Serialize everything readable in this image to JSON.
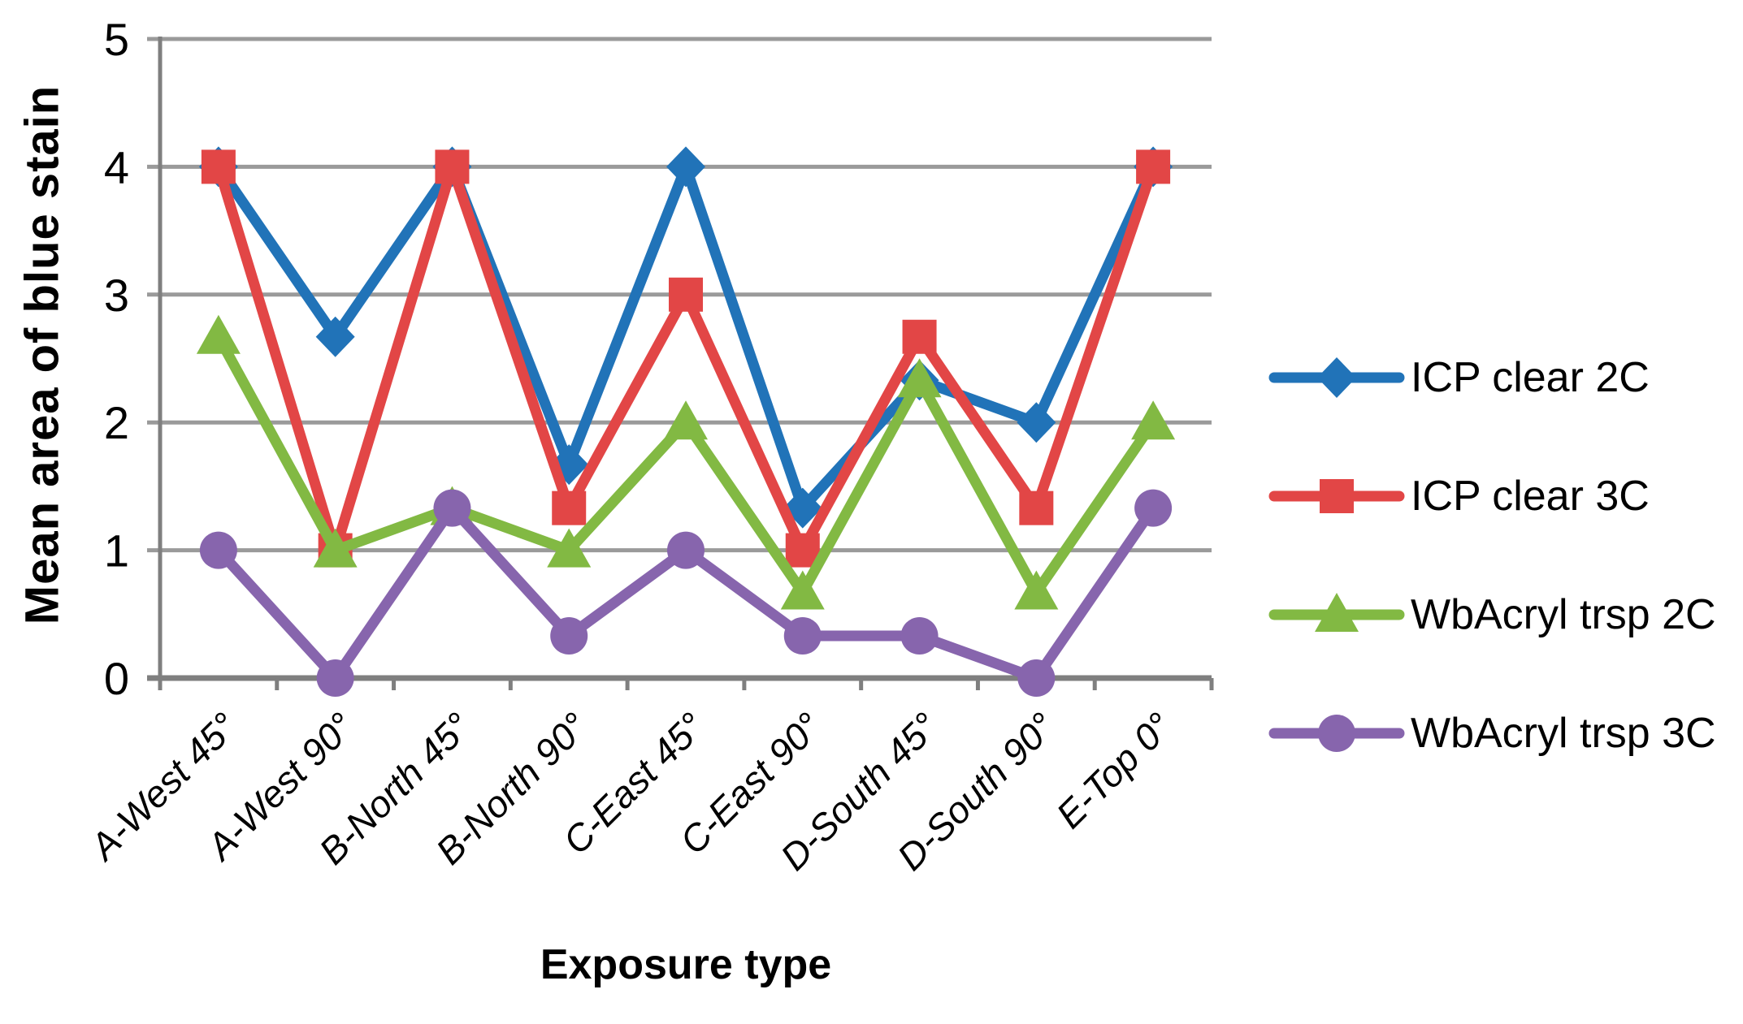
{
  "chart_data": {
    "type": "line",
    "title": "",
    "xlabel": "Exposure type",
    "ylabel": "Mean area of blue stain",
    "categories": [
      "A-West 45°",
      "A-West 90°",
      "B-North 45°",
      "B-North 90°",
      "C-East 45°",
      "C-East 90°",
      "D-South 45°",
      "D-South 90°",
      "E-Top 0°"
    ],
    "yticks": [
      0,
      1,
      2,
      3,
      4,
      5
    ],
    "ylim": [
      0,
      5
    ],
    "grid": true,
    "legend_position": "right",
    "series": [
      {
        "name": "ICP clear 2C",
        "color": "#2173B8",
        "marker": "diamond",
        "values": [
          4,
          2.67,
          4,
          1.67,
          4,
          1.33,
          2.33,
          2,
          4
        ]
      },
      {
        "name": "ICP clear 3C",
        "color": "#E24646",
        "marker": "square",
        "values": [
          4,
          1,
          4,
          1.33,
          3,
          1,
          2.67,
          1.33,
          4
        ]
      },
      {
        "name": "WbAcryl trsp 2C",
        "color": "#82B943",
        "marker": "triangle",
        "values": [
          2.67,
          1,
          1.33,
          1,
          2,
          0.67,
          2.33,
          0.67,
          2
        ]
      },
      {
        "name": "WbAcryl trsp 3C",
        "color": "#8765AD",
        "marker": "circle",
        "values": [
          1,
          0,
          1.33,
          0.33,
          1,
          0.33,
          0.33,
          0,
          1.33
        ]
      }
    ],
    "axis_color": "#7F7F7F",
    "grid_color": "#9A9A9A"
  }
}
